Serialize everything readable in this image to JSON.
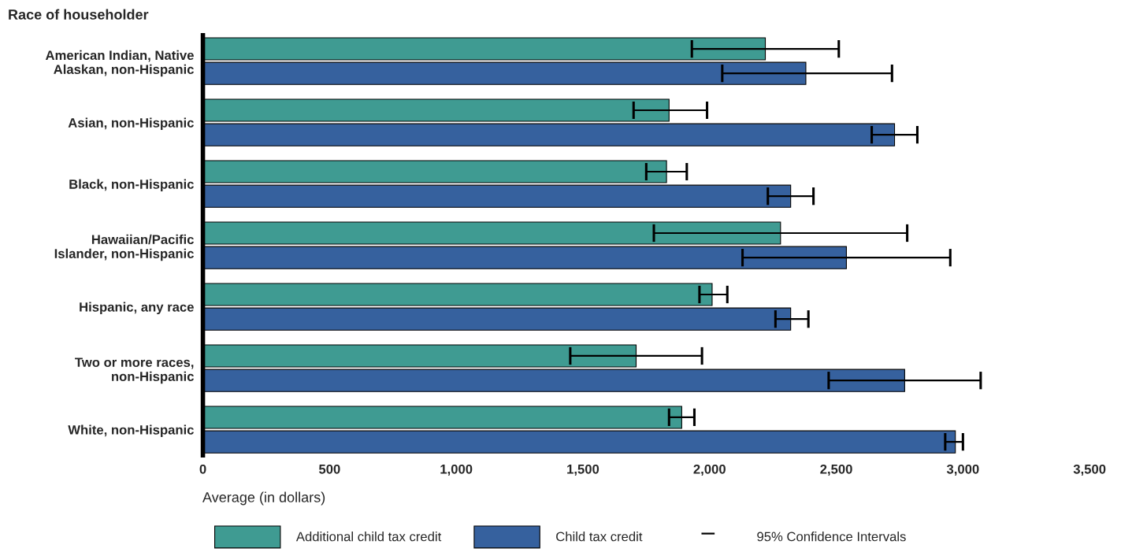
{
  "chart_data": {
    "type": "bar",
    "orientation": "horizontal",
    "ylabel": "Race of householder",
    "xlabel": "Average (in dollars)",
    "categories": [
      "American Indian, Native\nAlaskan, non-Hispanic",
      "Asian, non-Hispanic",
      "Black, non-Hispanic",
      "Hawaiian/Pacific\nIslander, non-Hispanic",
      "Hispanic, any race",
      "Two or more races,\nnon-Hispanic",
      "White, non-Hispanic"
    ],
    "series": [
      {
        "name": "Additional child tax credit",
        "color": "#3f9b92",
        "values": [
          2220,
          1840,
          1830,
          2280,
          2010,
          1710,
          1890
        ],
        "errors": [
          [
            1930,
            2510
          ],
          [
            1700,
            1990
          ],
          [
            1750,
            1910
          ],
          [
            1780,
            2780
          ],
          [
            1960,
            2070
          ],
          [
            1450,
            1970
          ],
          [
            1840,
            1940
          ]
        ]
      },
      {
        "name": "Child tax credit",
        "color": "#36619e",
        "values": [
          2380,
          2730,
          2320,
          2540,
          2320,
          2770,
          2970
        ],
        "errors": [
          [
            2050,
            2720
          ],
          [
            2640,
            2820
          ],
          [
            2230,
            2410
          ],
          [
            2130,
            2950
          ],
          [
            2260,
            2390
          ],
          [
            2470,
            3070
          ],
          [
            2930,
            3000
          ]
        ]
      }
    ],
    "annotations": [
      "95% Confidence Intervals"
    ],
    "xlim": [
      0,
      3500
    ],
    "xticks": [
      0,
      {
        "value": 500,
        "label": "500"
      },
      {
        "value": 1000,
        "label": "1,000"
      },
      {
        "value": 1500,
        "label": "1,500"
      },
      {
        "value": 2000,
        "label": "2,000"
      },
      {
        "value": 2500,
        "label": "2,500"
      },
      {
        "value": 3000,
        "label": "3,000"
      },
      {
        "value": 3500,
        "label": "3,500"
      }
    ],
    "grid": false,
    "legend": "bottom"
  }
}
